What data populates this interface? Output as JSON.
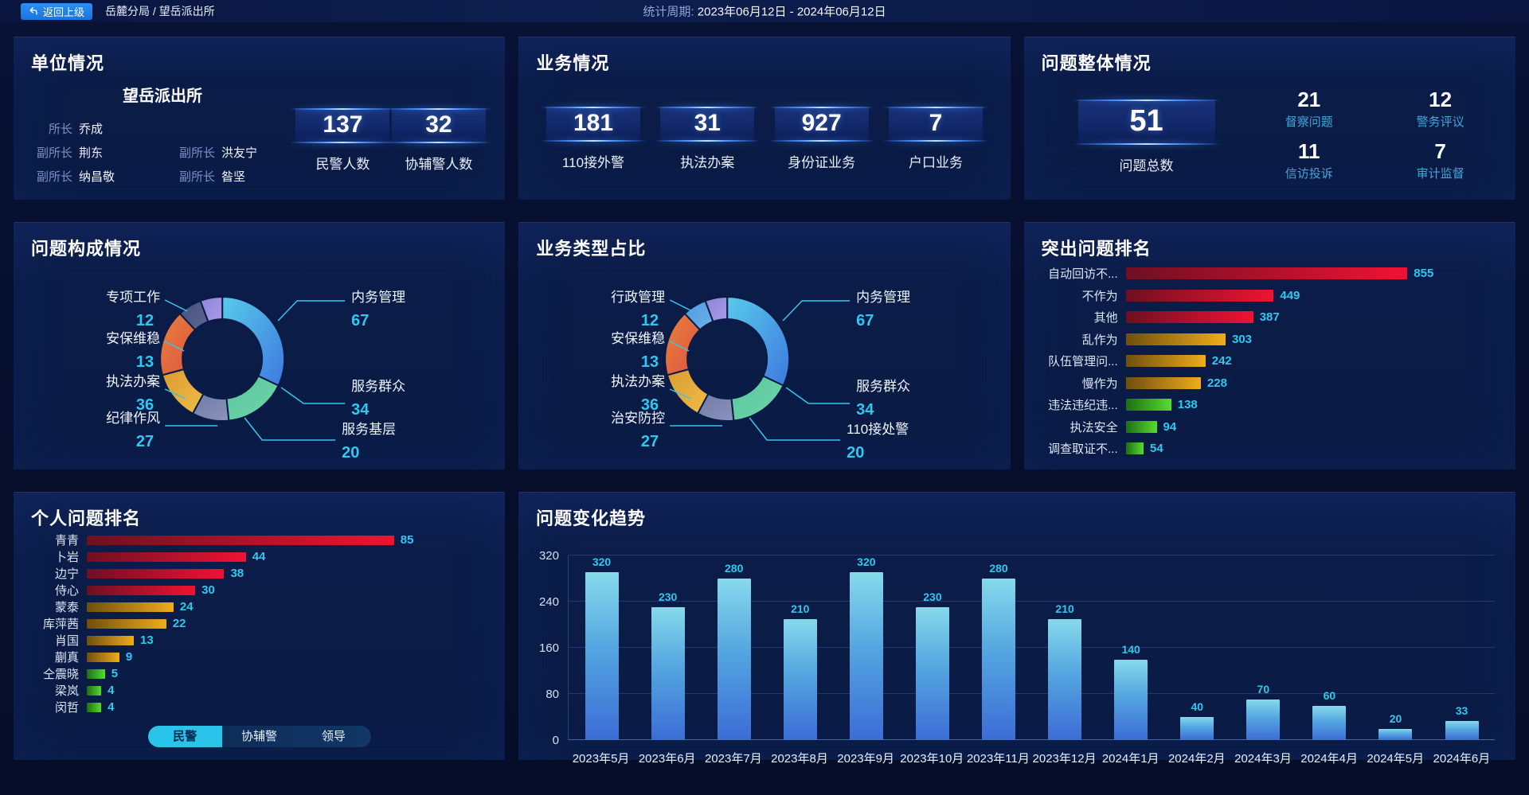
{
  "header": {
    "back_button": "返回上级",
    "breadcrumb": "岳麓分局 / 望岳派出所",
    "period_label": "统计周期:",
    "period_value": "2023年06月12日 - 2024年06月12日"
  },
  "unit_panel": {
    "title": "单位情况",
    "station_name": "望岳派出所",
    "leaders": [
      {
        "role": "所长",
        "name": "乔成"
      },
      {
        "role": "副所长",
        "name": "荆东"
      },
      {
        "role": "副所长",
        "name": "洪友宁"
      },
      {
        "role": "副所长",
        "name": "纳昌敬"
      },
      {
        "role": "副所长",
        "name": "昝坚"
      }
    ],
    "stats": [
      {
        "value": "137",
        "label": "民警人数"
      },
      {
        "value": "32",
        "label": "协辅警人数"
      }
    ]
  },
  "business_panel": {
    "title": "业务情况",
    "stats": [
      {
        "value": "181",
        "label": "110接外警"
      },
      {
        "value": "31",
        "label": "执法办案"
      },
      {
        "value": "927",
        "label": "身份证业务"
      },
      {
        "value": "7",
        "label": "户口业务"
      }
    ]
  },
  "problem_panel": {
    "title": "问题整体情况",
    "total": {
      "value": "51",
      "label": "问题总数"
    },
    "stats": [
      {
        "value": "21",
        "label": "督察问题"
      },
      {
        "value": "12",
        "label": "警务评议"
      },
      {
        "value": "11",
        "label": "信访投诉"
      },
      {
        "value": "7",
        "label": "审计监督"
      }
    ]
  },
  "chart_data": [
    {
      "id": "problem_composition",
      "type": "pie",
      "title": "问题构成情况",
      "legend_position": "callout-labels",
      "segments": [
        {
          "label": "内务管理",
          "value": 67,
          "color": "#57CBEA",
          "color2": "#3E78E0"
        },
        {
          "label": "服务群众",
          "value": 34,
          "color": "#5BC79B",
          "color2": "#6FD4AC"
        },
        {
          "label": "服务基层",
          "value": 20,
          "color": "#6F79A4",
          "color2": "#8A94BC"
        },
        {
          "label": "纪律作风",
          "value": 27,
          "color": "#D99C2E",
          "color2": "#F0BC4A"
        },
        {
          "label": "执法办案",
          "value": 36,
          "color": "#E8813E",
          "color2": "#DE5340"
        },
        {
          "label": "安保维稳",
          "value": 13,
          "color": "#49527E",
          "color2": "#5A6694"
        },
        {
          "label": "专项工作",
          "value": 12,
          "color": "#8F83D6",
          "color2": "#A79BE8"
        }
      ]
    },
    {
      "id": "business_type",
      "type": "pie",
      "title": "业务类型占比",
      "legend_position": "callout-labels",
      "segments": [
        {
          "label": "内务管理",
          "value": 67,
          "color": "#57CBEA",
          "color2": "#3E78E0"
        },
        {
          "label": "服务群众",
          "value": 34,
          "color": "#5BC79B",
          "color2": "#6FD4AC"
        },
        {
          "label": "110接处警",
          "value": 20,
          "color": "#6F79A4",
          "color2": "#8A94BC"
        },
        {
          "label": "治安防控",
          "value": 27,
          "color": "#D99C2E",
          "color2": "#F0BC4A"
        },
        {
          "label": "执法办案",
          "value": 36,
          "color": "#E8813E",
          "color2": "#DE5340"
        },
        {
          "label": "安保维稳",
          "value": 13,
          "color": "#4B9BE0",
          "color2": "#6FB2E8"
        },
        {
          "label": "行政管理",
          "value": 12,
          "color": "#8F83D6",
          "color2": "#A79BE8"
        }
      ]
    },
    {
      "id": "top_problems",
      "type": "bar",
      "orientation": "horizontal",
      "title": "突出问题排名",
      "max": 855,
      "items": [
        {
          "label": "自动回访不...",
          "value": 855,
          "band": "red"
        },
        {
          "label": "不作为",
          "value": 449,
          "band": "red"
        },
        {
          "label": "其他",
          "value": 387,
          "band": "red"
        },
        {
          "label": "乱作为",
          "value": 303,
          "band": "gold"
        },
        {
          "label": "队伍管理问...",
          "value": 242,
          "band": "gold"
        },
        {
          "label": "慢作为",
          "value": 228,
          "band": "gold"
        },
        {
          "label": "违法违纪违...",
          "value": 138,
          "band": "green"
        },
        {
          "label": "执法安全",
          "value": 94,
          "band": "green"
        },
        {
          "label": "调查取证不...",
          "value": 54,
          "band": "green"
        }
      ]
    },
    {
      "id": "personal_ranking",
      "type": "bar",
      "orientation": "horizontal",
      "title": "个人问题排名",
      "max": 85,
      "items": [
        {
          "label": "青青",
          "value": 85,
          "band": "red"
        },
        {
          "label": "卜岩",
          "value": 44,
          "band": "red"
        },
        {
          "label": "边宁",
          "value": 38,
          "band": "red"
        },
        {
          "label": "侍心",
          "value": 30,
          "band": "red"
        },
        {
          "label": "蒙泰",
          "value": 24,
          "band": "gold"
        },
        {
          "label": "库萍茜",
          "value": 22,
          "band": "gold"
        },
        {
          "label": "肖国",
          "value": 13,
          "band": "gold"
        },
        {
          "label": "蒯真",
          "value": 9,
          "band": "gold"
        },
        {
          "label": "仝震晓",
          "value": 5,
          "band": "green"
        },
        {
          "label": "梁岚",
          "value": 4,
          "band": "green"
        },
        {
          "label": "闵哲",
          "value": 4,
          "band": "green"
        }
      ],
      "tabs": [
        {
          "label": "民警",
          "active": true
        },
        {
          "label": "协辅警",
          "active": false
        },
        {
          "label": "领导",
          "active": false
        }
      ]
    },
    {
      "id": "trend",
      "type": "bar",
      "orientation": "vertical",
      "title": "问题变化趋势",
      "categories": [
        "2023年5月",
        "2023年6月",
        "2023年7月",
        "2023年8月",
        "2023年9月",
        "2023年10月",
        "2023年11月",
        "2023年12月",
        "2024年1月",
        "2024年2月",
        "2024年3月",
        "2024年4月",
        "2024年5月",
        "2024年6月"
      ],
      "values": [
        320,
        230,
        280,
        210,
        320,
        230,
        280,
        210,
        140,
        40,
        70,
        60,
        20,
        33
      ],
      "y_ticks": [
        0,
        80,
        160,
        240,
        320
      ],
      "ylim": [
        0,
        320
      ],
      "grid": true,
      "bar_color_top": "#86D9EB",
      "bar_color_mid": "#54A6E0",
      "bar_color_bottom": "#3C6CD6",
      "value_color": "#2FC8F0"
    }
  ],
  "colors": {
    "accent_cyan": "#2FC8F0",
    "label_blue": "#3FA9DC",
    "panel_bg": "#0A1B45",
    "page_bg": "#070F2E",
    "callout_line": "#35C6EE",
    "bar_red": [
      "#6E1022",
      "#F01232"
    ],
    "bar_gold": [
      "#6E4F0E",
      "#F0AC1C"
    ],
    "bar_green": [
      "#1E6E14",
      "#55DC30"
    ]
  }
}
